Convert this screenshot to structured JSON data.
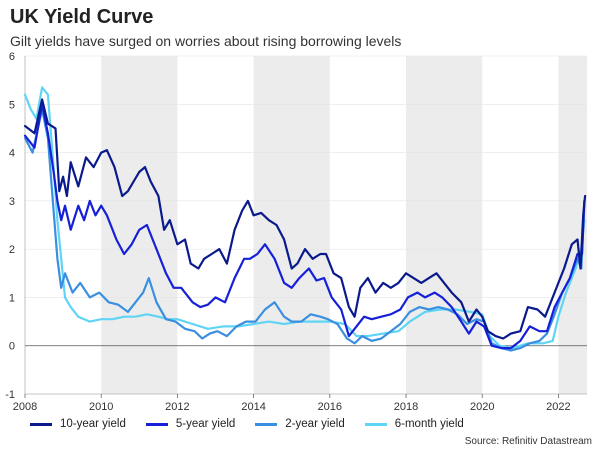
{
  "title": "UK Yield Curve",
  "subtitle": "Gilt yields have surged on worries about rising borrowing levels",
  "source": "Source: Refinitiv Datastream",
  "chart_data": {
    "type": "line",
    "x_ticks": [
      "2008",
      "2010",
      "2012",
      "2014",
      "2016",
      "2018",
      "2020",
      "2022"
    ],
    "y_ticks": [
      -1,
      0,
      1,
      2,
      3,
      4,
      5,
      6
    ],
    "xlim": [
      2008.0,
      2022.75
    ],
    "ylim": [
      -1,
      6
    ],
    "shaded_periods": [
      [
        2010,
        2012
      ],
      [
        2014,
        2016
      ],
      [
        2018,
        2020
      ],
      [
        2022,
        2022.75
      ]
    ],
    "grid": "horizontal",
    "legend_position": "bottom",
    "series": [
      {
        "name": "10-year yield",
        "color": "#0a1a8c",
        "points": [
          [
            2008.0,
            4.55
          ],
          [
            2008.25,
            4.4
          ],
          [
            2008.45,
            5.1
          ],
          [
            2008.6,
            4.6
          ],
          [
            2008.8,
            4.5
          ],
          [
            2008.9,
            3.2
          ],
          [
            2009.0,
            3.5
          ],
          [
            2009.1,
            3.1
          ],
          [
            2009.2,
            3.8
          ],
          [
            2009.4,
            3.3
          ],
          [
            2009.6,
            3.9
          ],
          [
            2009.8,
            3.7
          ],
          [
            2010.0,
            4.0
          ],
          [
            2010.15,
            4.05
          ],
          [
            2010.35,
            3.7
          ],
          [
            2010.55,
            3.1
          ],
          [
            2010.7,
            3.2
          ],
          [
            2010.85,
            3.4
          ],
          [
            2011.0,
            3.6
          ],
          [
            2011.15,
            3.7
          ],
          [
            2011.3,
            3.4
          ],
          [
            2011.5,
            3.1
          ],
          [
            2011.65,
            2.4
          ],
          [
            2011.8,
            2.6
          ],
          [
            2012.0,
            2.1
          ],
          [
            2012.2,
            2.2
          ],
          [
            2012.35,
            1.7
          ],
          [
            2012.55,
            1.6
          ],
          [
            2012.7,
            1.8
          ],
          [
            2012.9,
            1.9
          ],
          [
            2013.1,
            2.0
          ],
          [
            2013.3,
            1.7
          ],
          [
            2013.5,
            2.4
          ],
          [
            2013.7,
            2.8
          ],
          [
            2013.85,
            3.0
          ],
          [
            2014.0,
            2.7
          ],
          [
            2014.2,
            2.75
          ],
          [
            2014.4,
            2.6
          ],
          [
            2014.6,
            2.5
          ],
          [
            2014.8,
            2.2
          ],
          [
            2015.0,
            1.6
          ],
          [
            2015.15,
            1.7
          ],
          [
            2015.35,
            2.0
          ],
          [
            2015.55,
            1.8
          ],
          [
            2015.75,
            1.9
          ],
          [
            2015.9,
            1.9
          ],
          [
            2016.1,
            1.5
          ],
          [
            2016.3,
            1.4
          ],
          [
            2016.5,
            0.8
          ],
          [
            2016.65,
            0.6
          ],
          [
            2016.8,
            1.2
          ],
          [
            2017.0,
            1.4
          ],
          [
            2017.2,
            1.1
          ],
          [
            2017.4,
            1.3
          ],
          [
            2017.6,
            1.2
          ],
          [
            2017.8,
            1.3
          ],
          [
            2018.0,
            1.5
          ],
          [
            2018.2,
            1.4
          ],
          [
            2018.4,
            1.3
          ],
          [
            2018.6,
            1.4
          ],
          [
            2018.8,
            1.5
          ],
          [
            2019.0,
            1.3
          ],
          [
            2019.2,
            1.1
          ],
          [
            2019.45,
            0.9
          ],
          [
            2019.65,
            0.5
          ],
          [
            2019.85,
            0.75
          ],
          [
            2020.0,
            0.6
          ],
          [
            2020.15,
            0.3
          ],
          [
            2020.35,
            0.2
          ],
          [
            2020.55,
            0.15
          ],
          [
            2020.75,
            0.25
          ],
          [
            2021.0,
            0.3
          ],
          [
            2021.2,
            0.8
          ],
          [
            2021.45,
            0.75
          ],
          [
            2021.65,
            0.6
          ],
          [
            2021.85,
            1.0
          ],
          [
            2022.0,
            1.3
          ],
          [
            2022.15,
            1.6
          ],
          [
            2022.35,
            2.1
          ],
          [
            2022.5,
            2.2
          ],
          [
            2022.58,
            1.6
          ],
          [
            2022.65,
            2.7
          ],
          [
            2022.7,
            3.1
          ]
        ]
      },
      {
        "name": "5-year yield",
        "color": "#1620d8",
        "points": [
          [
            2008.0,
            4.35
          ],
          [
            2008.25,
            4.1
          ],
          [
            2008.45,
            5.0
          ],
          [
            2008.6,
            4.4
          ],
          [
            2008.75,
            3.6
          ],
          [
            2008.85,
            3.0
          ],
          [
            2008.95,
            2.6
          ],
          [
            2009.05,
            2.9
          ],
          [
            2009.2,
            2.4
          ],
          [
            2009.4,
            2.9
          ],
          [
            2009.55,
            2.6
          ],
          [
            2009.7,
            3.0
          ],
          [
            2009.85,
            2.7
          ],
          [
            2010.0,
            2.9
          ],
          [
            2010.15,
            2.7
          ],
          [
            2010.4,
            2.2
          ],
          [
            2010.6,
            1.9
          ],
          [
            2010.8,
            2.1
          ],
          [
            2011.0,
            2.4
          ],
          [
            2011.2,
            2.5
          ],
          [
            2011.45,
            2.0
          ],
          [
            2011.7,
            1.5
          ],
          [
            2011.9,
            1.2
          ],
          [
            2012.1,
            1.2
          ],
          [
            2012.4,
            0.9
          ],
          [
            2012.6,
            0.8
          ],
          [
            2012.8,
            0.85
          ],
          [
            2013.0,
            1.0
          ],
          [
            2013.25,
            0.9
          ],
          [
            2013.5,
            1.4
          ],
          [
            2013.75,
            1.8
          ],
          [
            2013.9,
            1.8
          ],
          [
            2014.1,
            1.9
          ],
          [
            2014.3,
            2.1
          ],
          [
            2014.55,
            1.8
          ],
          [
            2014.8,
            1.3
          ],
          [
            2015.0,
            1.2
          ],
          [
            2015.2,
            1.4
          ],
          [
            2015.45,
            1.6
          ],
          [
            2015.65,
            1.35
          ],
          [
            2015.85,
            1.4
          ],
          [
            2016.05,
            1.0
          ],
          [
            2016.3,
            0.75
          ],
          [
            2016.5,
            0.2
          ],
          [
            2016.7,
            0.4
          ],
          [
            2016.9,
            0.6
          ],
          [
            2017.1,
            0.55
          ],
          [
            2017.35,
            0.6
          ],
          [
            2017.6,
            0.65
          ],
          [
            2017.85,
            0.75
          ],
          [
            2018.05,
            1.0
          ],
          [
            2018.3,
            1.1
          ],
          [
            2018.5,
            1.0
          ],
          [
            2018.75,
            1.1
          ],
          [
            2018.95,
            1.0
          ],
          [
            2019.2,
            0.8
          ],
          [
            2019.45,
            0.5
          ],
          [
            2019.65,
            0.25
          ],
          [
            2019.85,
            0.5
          ],
          [
            2020.05,
            0.4
          ],
          [
            2020.25,
            0.0
          ],
          [
            2020.5,
            -0.05
          ],
          [
            2020.75,
            -0.05
          ],
          [
            2021.0,
            0.1
          ],
          [
            2021.25,
            0.4
          ],
          [
            2021.5,
            0.3
          ],
          [
            2021.7,
            0.3
          ],
          [
            2021.9,
            0.8
          ],
          [
            2022.1,
            1.1
          ],
          [
            2022.3,
            1.4
          ],
          [
            2022.5,
            1.9
          ],
          [
            2022.62,
            1.9
          ],
          [
            2022.68,
            3.0
          ]
        ]
      },
      {
        "name": "2-year yield",
        "color": "#3a8fe0",
        "points": [
          [
            2008.0,
            4.3
          ],
          [
            2008.2,
            4.0
          ],
          [
            2008.45,
            4.9
          ],
          [
            2008.6,
            4.3
          ],
          [
            2008.7,
            3.3
          ],
          [
            2008.85,
            1.8
          ],
          [
            2008.95,
            1.2
          ],
          [
            2009.05,
            1.5
          ],
          [
            2009.25,
            1.1
          ],
          [
            2009.45,
            1.3
          ],
          [
            2009.7,
            1.0
          ],
          [
            2009.95,
            1.1
          ],
          [
            2010.2,
            0.9
          ],
          [
            2010.45,
            0.85
          ],
          [
            2010.7,
            0.7
          ],
          [
            2010.9,
            0.9
          ],
          [
            2011.1,
            1.1
          ],
          [
            2011.25,
            1.4
          ],
          [
            2011.45,
            0.9
          ],
          [
            2011.7,
            0.55
          ],
          [
            2011.95,
            0.5
          ],
          [
            2012.2,
            0.35
          ],
          [
            2012.45,
            0.3
          ],
          [
            2012.65,
            0.15
          ],
          [
            2012.85,
            0.25
          ],
          [
            2013.05,
            0.3
          ],
          [
            2013.3,
            0.2
          ],
          [
            2013.55,
            0.4
          ],
          [
            2013.8,
            0.5
          ],
          [
            2014.05,
            0.5
          ],
          [
            2014.3,
            0.75
          ],
          [
            2014.55,
            0.9
          ],
          [
            2014.8,
            0.6
          ],
          [
            2015.0,
            0.5
          ],
          [
            2015.25,
            0.5
          ],
          [
            2015.5,
            0.65
          ],
          [
            2015.75,
            0.6
          ],
          [
            2015.95,
            0.55
          ],
          [
            2016.2,
            0.45
          ],
          [
            2016.45,
            0.15
          ],
          [
            2016.65,
            0.05
          ],
          [
            2016.85,
            0.2
          ],
          [
            2017.1,
            0.1
          ],
          [
            2017.35,
            0.15
          ],
          [
            2017.6,
            0.3
          ],
          [
            2017.85,
            0.45
          ],
          [
            2018.1,
            0.7
          ],
          [
            2018.35,
            0.8
          ],
          [
            2018.6,
            0.75
          ],
          [
            2018.85,
            0.8
          ],
          [
            2019.1,
            0.75
          ],
          [
            2019.35,
            0.65
          ],
          [
            2019.6,
            0.45
          ],
          [
            2019.85,
            0.55
          ],
          [
            2020.05,
            0.5
          ],
          [
            2020.25,
            0.05
          ],
          [
            2020.5,
            -0.05
          ],
          [
            2020.75,
            -0.1
          ],
          [
            2021.0,
            -0.05
          ],
          [
            2021.25,
            0.05
          ],
          [
            2021.5,
            0.1
          ],
          [
            2021.7,
            0.25
          ],
          [
            2021.9,
            0.65
          ],
          [
            2022.1,
            1.1
          ],
          [
            2022.3,
            1.4
          ],
          [
            2022.5,
            1.8
          ],
          [
            2022.6,
            1.6
          ],
          [
            2022.68,
            2.9
          ]
        ]
      },
      {
        "name": "6-month yield",
        "color": "#5fd4f5",
        "points": [
          [
            2008.0,
            5.2
          ],
          [
            2008.15,
            4.9
          ],
          [
            2008.3,
            4.7
          ],
          [
            2008.45,
            5.35
          ],
          [
            2008.6,
            5.2
          ],
          [
            2008.75,
            3.7
          ],
          [
            2008.85,
            2.6
          ],
          [
            2008.95,
            1.8
          ],
          [
            2009.05,
            1.0
          ],
          [
            2009.2,
            0.8
          ],
          [
            2009.4,
            0.6
          ],
          [
            2009.7,
            0.5
          ],
          [
            2010.0,
            0.55
          ],
          [
            2010.3,
            0.55
          ],
          [
            2010.6,
            0.6
          ],
          [
            2010.9,
            0.6
          ],
          [
            2011.2,
            0.65
          ],
          [
            2011.5,
            0.6
          ],
          [
            2011.75,
            0.55
          ],
          [
            2012.0,
            0.55
          ],
          [
            2012.4,
            0.45
          ],
          [
            2012.8,
            0.35
          ],
          [
            2013.2,
            0.4
          ],
          [
            2013.6,
            0.4
          ],
          [
            2014.0,
            0.45
          ],
          [
            2014.4,
            0.5
          ],
          [
            2014.8,
            0.45
          ],
          [
            2015.2,
            0.5
          ],
          [
            2015.6,
            0.5
          ],
          [
            2016.0,
            0.5
          ],
          [
            2016.4,
            0.45
          ],
          [
            2016.7,
            0.2
          ],
          [
            2017.0,
            0.2
          ],
          [
            2017.4,
            0.25
          ],
          [
            2017.8,
            0.3
          ],
          [
            2018.1,
            0.5
          ],
          [
            2018.5,
            0.7
          ],
          [
            2018.9,
            0.75
          ],
          [
            2019.3,
            0.75
          ],
          [
            2019.7,
            0.7
          ],
          [
            2020.0,
            0.65
          ],
          [
            2020.2,
            0.2
          ],
          [
            2020.45,
            0.0
          ],
          [
            2020.8,
            -0.05
          ],
          [
            2021.2,
            0.05
          ],
          [
            2021.6,
            0.05
          ],
          [
            2021.85,
            0.1
          ],
          [
            2022.0,
            0.6
          ],
          [
            2022.2,
            1.1
          ],
          [
            2022.45,
            1.6
          ],
          [
            2022.6,
            2.0
          ],
          [
            2022.68,
            2.6
          ]
        ]
      }
    ]
  }
}
